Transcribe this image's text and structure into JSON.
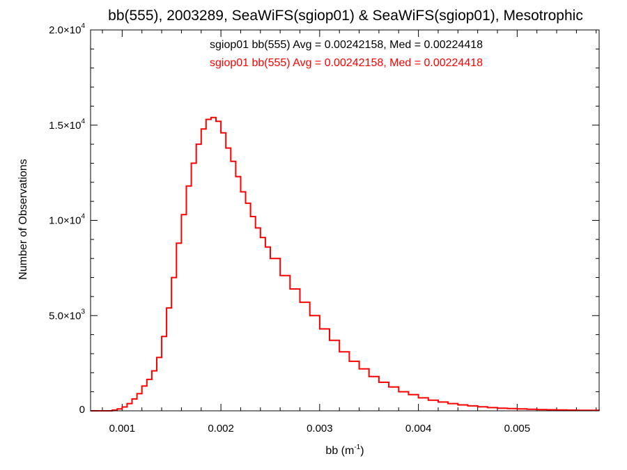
{
  "chart_data": {
    "type": "line",
    "title": "bb(555), 2003289, SeaWiFS(sgiop01) & SeaWiFS(sgiop01), Mesotrophic",
    "xlabel_base": "bb (m",
    "xlabel_sup": "-1",
    "xlabel_end": ")",
    "ylabel": "Number of Observations",
    "xlim": [
      0.00068,
      0.00583
    ],
    "ylim": [
      0,
      20000
    ],
    "xticks": [
      {
        "value": 0.001,
        "label": "0.001"
      },
      {
        "value": 0.002,
        "label": "0.002"
      },
      {
        "value": 0.003,
        "label": "0.003"
      },
      {
        "value": 0.004,
        "label": "0.004"
      },
      {
        "value": 0.005,
        "label": "0.005"
      }
    ],
    "yticks": [
      {
        "value": 0,
        "mant": "0",
        "exp": ""
      },
      {
        "value": 5000,
        "mant": "5.0×10",
        "exp": "3"
      },
      {
        "value": 10000,
        "mant": "1.0×10",
        "exp": "4"
      },
      {
        "value": 15000,
        "mant": "1.5×10",
        "exp": "4"
      },
      {
        "value": 20000,
        "mant": "2.0×10",
        "exp": "4"
      }
    ],
    "annotations": [
      {
        "text": "sgiop01 bb(555) Avg = 0.00242158, Med = 0.00224418",
        "color": "#000000"
      },
      {
        "text": "sgiop01 bb(555) Avg = 0.00242158, Med = 0.00224418",
        "color": "#ff0000"
      }
    ],
    "series": [
      {
        "color": "#ff0000",
        "x": [
          0.00068,
          0.0008,
          0.0009,
          0.00095,
          0.001,
          0.00105,
          0.0011,
          0.00115,
          0.0012,
          0.00125,
          0.0013,
          0.00135,
          0.0014,
          0.00145,
          0.0015,
          0.00155,
          0.0016,
          0.00165,
          0.0017,
          0.00175,
          0.0018,
          0.00185,
          0.0019,
          0.00195,
          0.002,
          0.00205,
          0.0021,
          0.00215,
          0.0022,
          0.00225,
          0.0023,
          0.00235,
          0.0024,
          0.00245,
          0.0025,
          0.0026,
          0.0027,
          0.0028,
          0.0029,
          0.003,
          0.0031,
          0.0032,
          0.0033,
          0.0034,
          0.0035,
          0.0036,
          0.0037,
          0.0038,
          0.0039,
          0.004,
          0.0041,
          0.0042,
          0.0043,
          0.0044,
          0.0045,
          0.0046,
          0.0047,
          0.0048,
          0.0049,
          0.005,
          0.0051,
          0.0052,
          0.0053,
          0.0054,
          0.0055,
          0.0056,
          0.0057,
          0.00583
        ],
        "y": [
          0,
          0,
          40,
          100,
          200,
          380,
          620,
          900,
          1300,
          1650,
          2100,
          2800,
          3900,
          5400,
          7000,
          8800,
          10300,
          11800,
          13000,
          14000,
          14800,
          15300,
          15400,
          15200,
          14600,
          13800,
          13100,
          12300,
          11500,
          10900,
          10200,
          9600,
          9100,
          8600,
          8000,
          7100,
          6400,
          5700,
          5000,
          4300,
          3700,
          3100,
          2600,
          2200,
          1800,
          1500,
          1250,
          1000,
          850,
          680,
          560,
          460,
          380,
          310,
          260,
          210,
          170,
          140,
          120,
          100,
          80,
          65,
          55,
          45,
          35,
          30,
          25,
          20
        ]
      }
    ]
  }
}
